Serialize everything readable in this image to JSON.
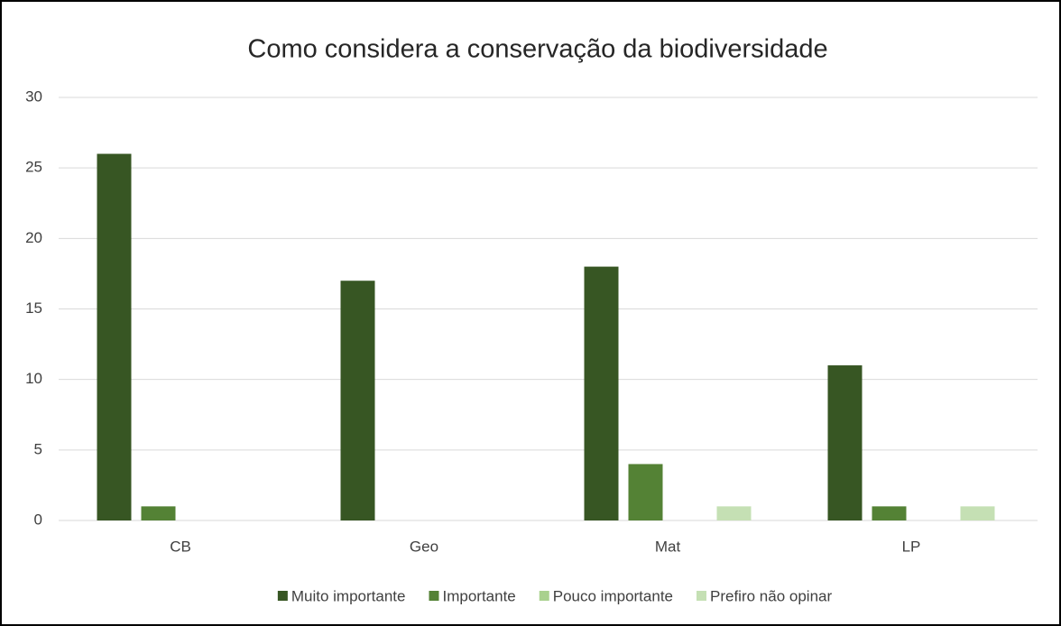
{
  "chart_data": {
    "type": "bar",
    "title": "Como considera a conservação da biodiversidade",
    "categories": [
      "CB",
      "Geo",
      "Mat",
      "LP"
    ],
    "series": [
      {
        "name": "Muito importante",
        "color": "#375623",
        "values": [
          26,
          17,
          18,
          11
        ]
      },
      {
        "name": "Importante",
        "color": "#548235",
        "values": [
          1,
          0,
          4,
          1
        ]
      },
      {
        "name": "Pouco importante",
        "color": "#a9d18e",
        "values": [
          0,
          0,
          0,
          0
        ]
      },
      {
        "name": "Prefiro não opinar",
        "color": "#c5e0b4",
        "values": [
          0,
          0,
          1,
          1
        ]
      }
    ],
    "ylim": [
      0,
      30
    ],
    "yticks": [
      0,
      5,
      10,
      15,
      20,
      25,
      30
    ],
    "grid": true,
    "legend": "bottom"
  }
}
